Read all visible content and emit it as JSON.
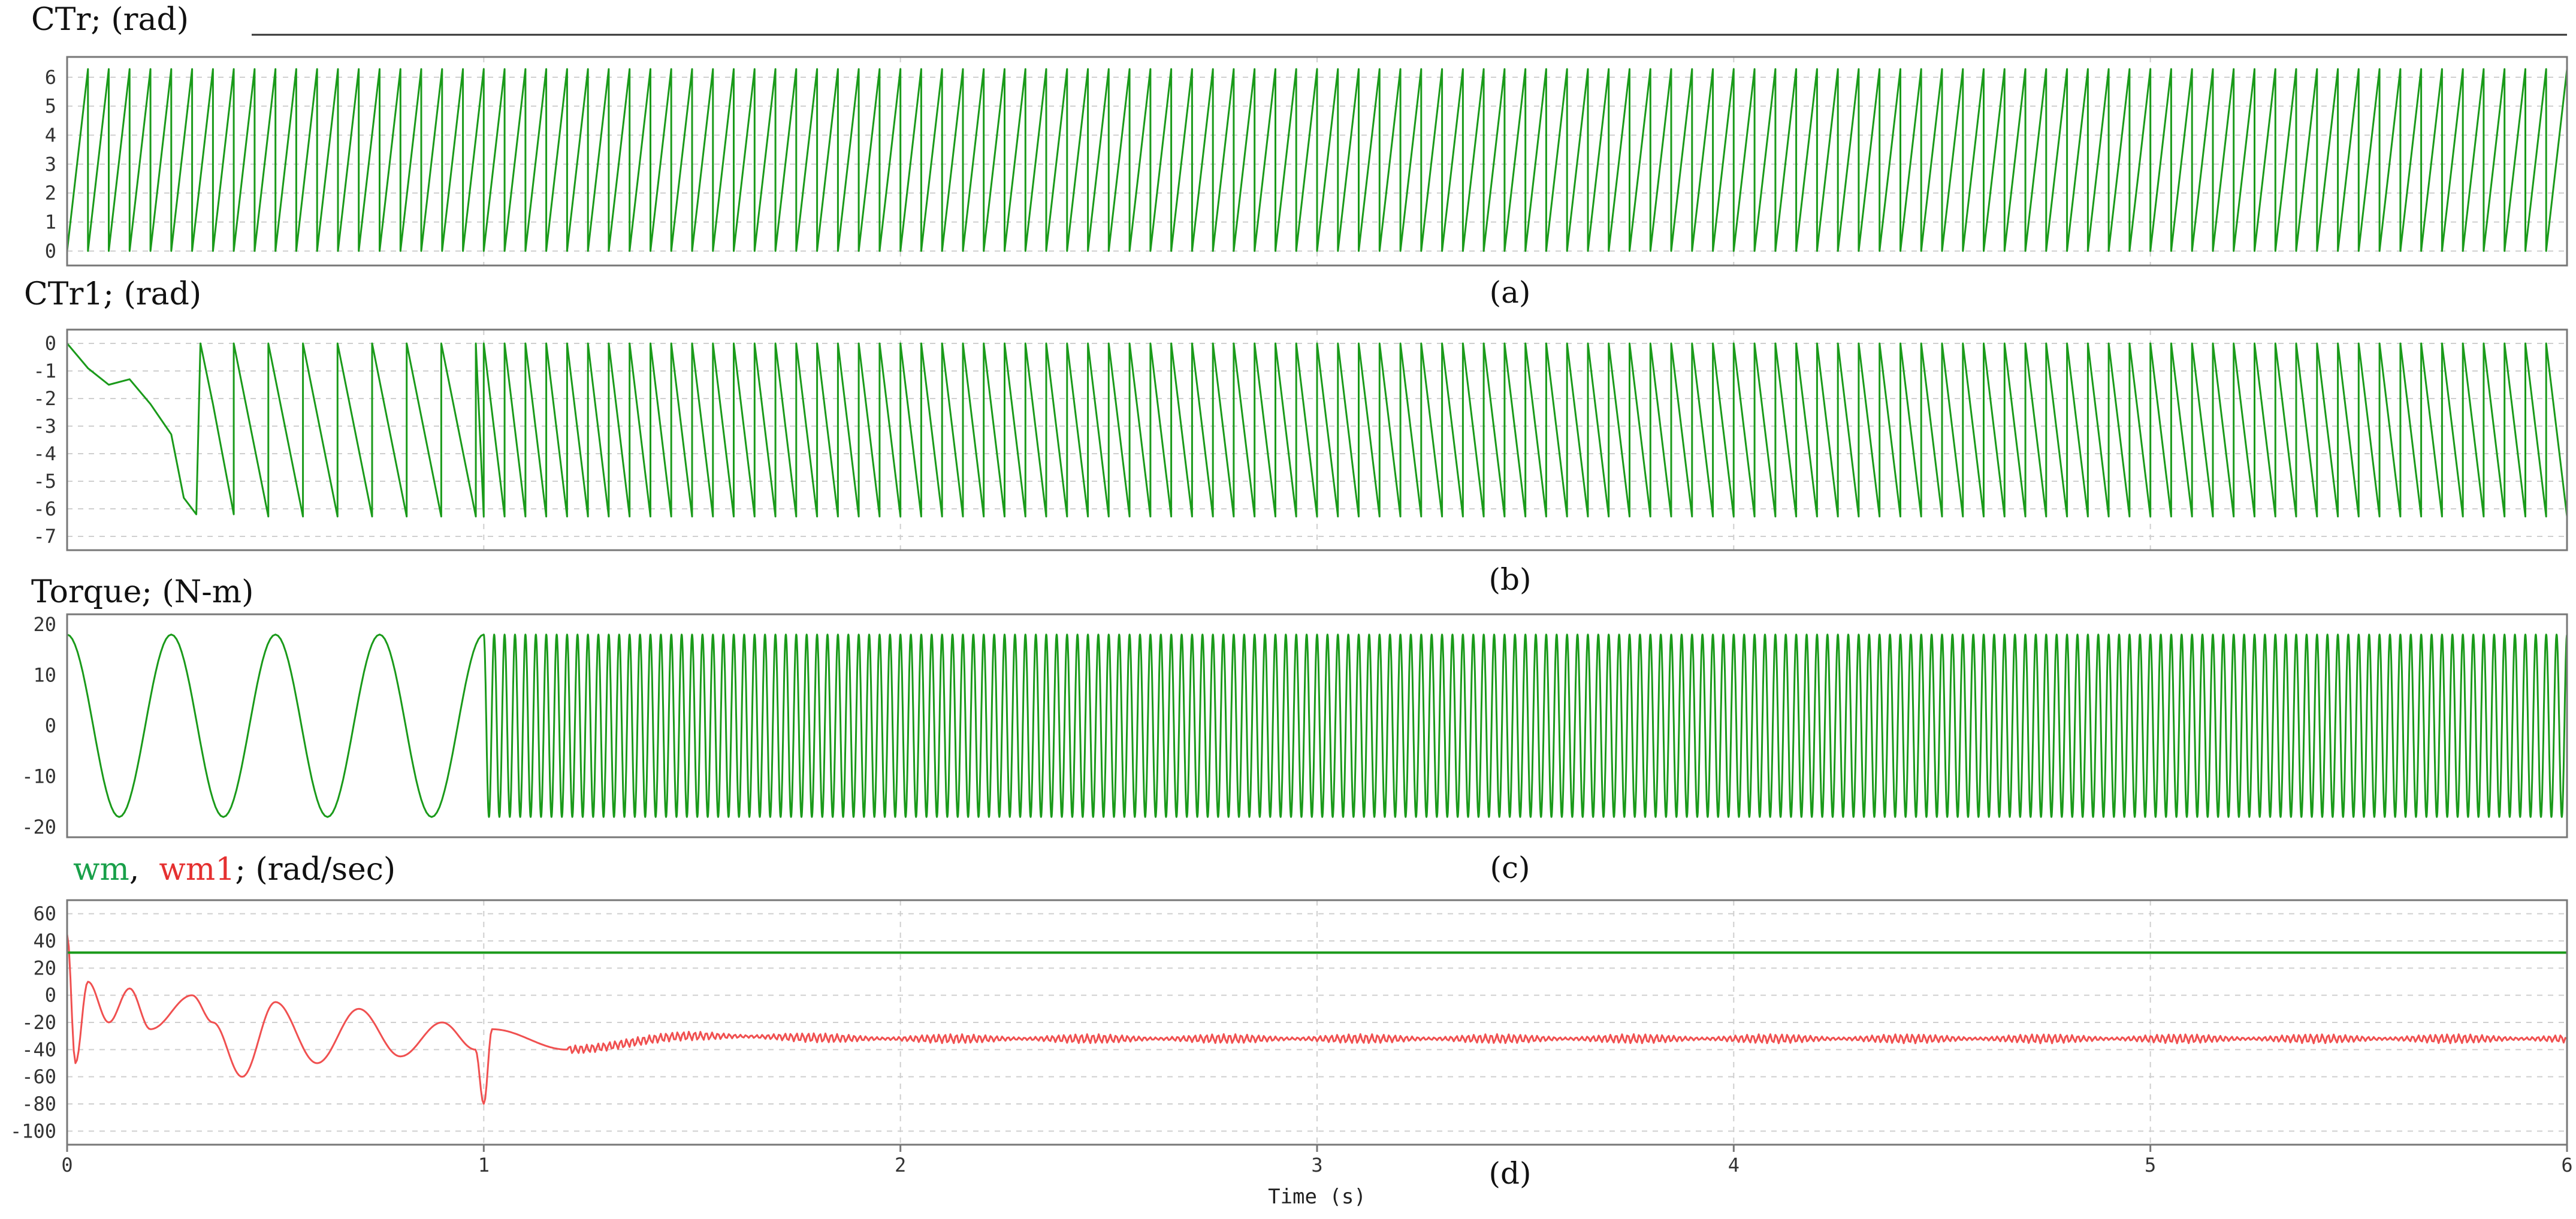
{
  "figure": {
    "xlabel": "Time (s)",
    "x_ticks": [
      0,
      1,
      2,
      3,
      4,
      5,
      6
    ],
    "xlim": [
      0,
      6
    ]
  },
  "chart_data": [
    {
      "id": "a",
      "type": "line",
      "title": "CTr; (rad)",
      "caption": "(a)",
      "ylim": [
        -0.5,
        6.7
      ],
      "yticks": [
        0,
        1,
        2,
        3,
        4,
        5,
        6
      ],
      "grid": true,
      "series": [
        {
          "color": "#1a9a1a",
          "shape": "sawtooth",
          "segments": [
            {
              "t_start": 0,
              "t_end": 6,
              "low": 0,
              "high": 6.28,
              "period": 0.05
            }
          ]
        }
      ]
    },
    {
      "id": "b",
      "type": "line",
      "title": "CTr1; (rad)",
      "caption": "(b)",
      "ylim": [
        -7.5,
        0.5
      ],
      "yticks": [
        0,
        -1,
        -2,
        -3,
        -4,
        -5,
        -6,
        -7
      ],
      "grid": true,
      "series": [
        {
          "color": "#1a9a1a",
          "shape": "transient-then-sawtooth",
          "transient": [
            [
              0,
              0
            ],
            [
              0.05,
              -0.9
            ],
            [
              0.1,
              -1.5
            ],
            [
              0.15,
              -1.3
            ],
            [
              0.2,
              -2.2
            ],
            [
              0.25,
              -3.3
            ],
            [
              0.28,
              -5.6
            ],
            [
              0.31,
              -6.2
            ],
            [
              0.32,
              0
            ],
            [
              0.35,
              -2.2
            ],
            [
              0.4,
              -6.2
            ]
          ],
          "segments": [
            {
              "t_start": 0.4,
              "t_end": 1.0,
              "low": -6.28,
              "high": 0,
              "period": 0.083
            },
            {
              "t_start": 1.0,
              "t_end": 6.0,
              "low": -6.28,
              "high": 0,
              "period": 0.05
            }
          ]
        }
      ]
    },
    {
      "id": "c",
      "type": "line",
      "title": "Torque; (N-m)",
      "caption": "(c)",
      "ylim": [
        -22,
        22
      ],
      "yticks": [
        20,
        10,
        0,
        -10,
        -20
      ],
      "grid": false,
      "series": [
        {
          "color": "#1a9a1a",
          "shape": "sine",
          "segments": [
            {
              "t_start": 0,
              "t_end": 1.0,
              "amplitude": 18,
              "period": 0.25,
              "phase_deg": 90
            },
            {
              "t_start": 1.0,
              "t_end": 6.0,
              "amplitude": 18,
              "period": 0.025,
              "phase_deg": 90
            }
          ]
        }
      ]
    },
    {
      "id": "d",
      "type": "line",
      "title_parts": [
        {
          "text": "wm",
          "color": "#19a04a"
        },
        {
          "text": ",  ",
          "color": "#111111"
        },
        {
          "text": "wm1",
          "color": "#e53030"
        },
        {
          "text": "; (rad/sec)",
          "color": "#111111"
        }
      ],
      "caption": "(d)",
      "ylim": [
        -110,
        70
      ],
      "yticks": [
        60,
        40,
        20,
        0,
        -20,
        -40,
        -60,
        -80,
        -100
      ],
      "grid": true,
      "series": [
        {
          "name": "wm",
          "color": "#1a9a1a",
          "shape": "constant",
          "value": 31.4
        },
        {
          "name": "wm1",
          "color": "#f05050",
          "shape": "damped-oscillation",
          "points": [
            [
              0,
              45
            ],
            [
              0.02,
              -50
            ],
            [
              0.05,
              10
            ],
            [
              0.1,
              -20
            ],
            [
              0.15,
              5
            ],
            [
              0.2,
              -25
            ],
            [
              0.3,
              0
            ],
            [
              0.35,
              -20
            ],
            [
              0.42,
              -60
            ],
            [
              0.5,
              -5
            ],
            [
              0.6,
              -50
            ],
            [
              0.7,
              -10
            ],
            [
              0.8,
              -45
            ],
            [
              0.9,
              -20
            ],
            [
              0.98,
              -40
            ],
            [
              1.0,
              -80
            ],
            [
              1.02,
              -25
            ],
            [
              1.2,
              -40
            ],
            [
              1.5,
              -30
            ],
            [
              2,
              -32
            ],
            [
              6,
              -32
            ]
          ]
        }
      ]
    }
  ]
}
